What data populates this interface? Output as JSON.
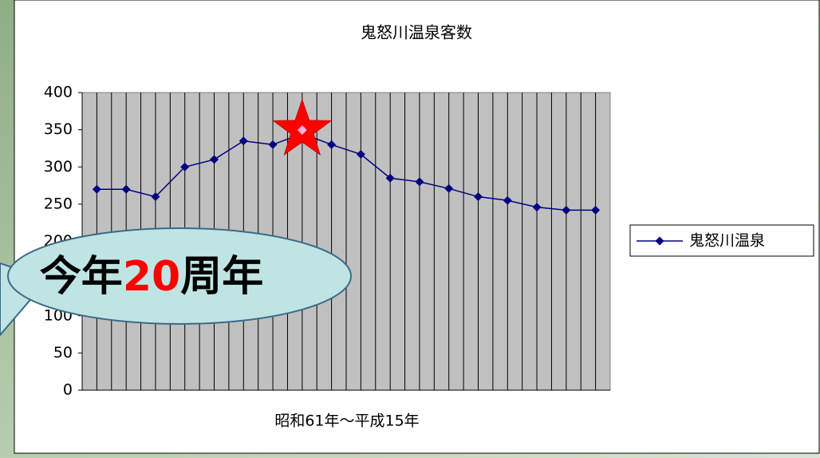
{
  "chart_data": {
    "type": "line",
    "title": "鬼怒川温泉客数",
    "x_label": "昭和61年～平成15年",
    "categories": [
      null,
      null,
      null,
      null,
      null,
      null,
      null,
      null,
      null,
      null,
      null,
      null,
      null,
      null,
      null,
      null,
      null,
      null
    ],
    "series": [
      {
        "name": "鬼怒川温泉",
        "color": "#000080",
        "values": [
          270,
          270,
          260,
          300,
          310,
          335,
          330,
          345,
          330,
          317,
          285,
          280,
          271,
          260,
          255,
          246,
          242,
          242
        ]
      }
    ],
    "ylim": [
      0,
      400
    ],
    "yticks": [
      0,
      50,
      100,
      150,
      200,
      250,
      300,
      350,
      400
    ],
    "grid": true,
    "legend": "right",
    "annotation": [
      "今年",
      "20",
      "周年"
    ]
  }
}
